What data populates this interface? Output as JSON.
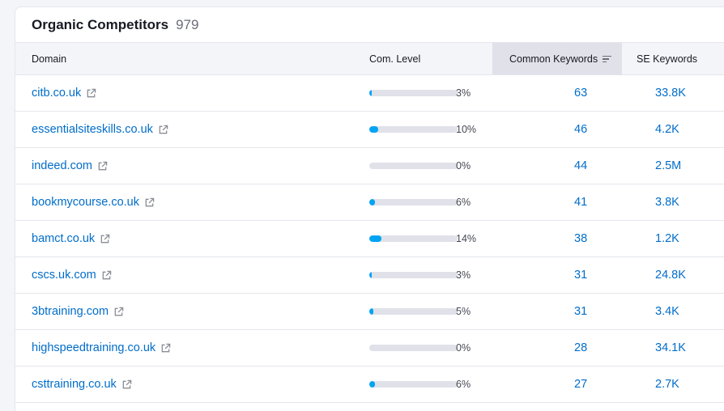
{
  "widget": {
    "title": "Organic Competitors",
    "count": "979"
  },
  "columns": {
    "domain": "Domain",
    "com_level": "Com. Level",
    "common_keywords": "Common Keywords",
    "se_keywords": "SE Keywords"
  },
  "colors": {
    "link": "#006dca",
    "bar_fill": "#00a4f3",
    "bar_track": "#e0e1e9",
    "header_bg": "#f4f5f9",
    "sorted_header_bg": "#e0e1e9"
  },
  "rows": [
    {
      "domain": "citb.co.uk",
      "com_level_pct": "3%",
      "com_level": 3,
      "common_keywords": "63",
      "se_keywords": "33.8K"
    },
    {
      "domain": "essentialsiteskills.co.uk",
      "com_level_pct": "10%",
      "com_level": 10,
      "common_keywords": "46",
      "se_keywords": "4.2K"
    },
    {
      "domain": "indeed.com",
      "com_level_pct": "0%",
      "com_level": 0,
      "common_keywords": "44",
      "se_keywords": "2.5M"
    },
    {
      "domain": "bookmycourse.co.uk",
      "com_level_pct": "6%",
      "com_level": 6,
      "common_keywords": "41",
      "se_keywords": "3.8K"
    },
    {
      "domain": "bamct.co.uk",
      "com_level_pct": "14%",
      "com_level": 14,
      "common_keywords": "38",
      "se_keywords": "1.2K"
    },
    {
      "domain": "cscs.uk.com",
      "com_level_pct": "3%",
      "com_level": 3,
      "common_keywords": "31",
      "se_keywords": "24.8K"
    },
    {
      "domain": "3btraining.com",
      "com_level_pct": "5%",
      "com_level": 5,
      "common_keywords": "31",
      "se_keywords": "3.4K"
    },
    {
      "domain": "highspeedtraining.co.uk",
      "com_level_pct": "0%",
      "com_level": 0,
      "common_keywords": "28",
      "se_keywords": "34.1K"
    },
    {
      "domain": "csttraining.co.uk",
      "com_level_pct": "6%",
      "com_level": 6,
      "common_keywords": "27",
      "se_keywords": "2.7K"
    }
  ]
}
